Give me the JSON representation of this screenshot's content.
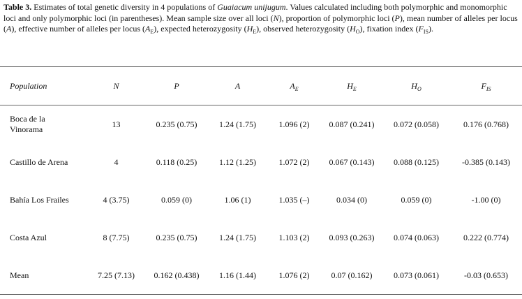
{
  "caption": [
    {
      "text": "Table 3.",
      "style": "bold"
    },
    {
      "text": " Estimates of total genetic diversity in 4 populations of ",
      "style": "plain"
    },
    {
      "text": "Guaiacum unijugum",
      "style": "italic"
    },
    {
      "text": ". Values calculated including both polymorphic and monomorphic loci and only polymorphic loci (in parentheses). Mean sample size over all loci (",
      "style": "plain"
    },
    {
      "text": "N",
      "style": "italic"
    },
    {
      "text": "), proportion of polymorphic loci (",
      "style": "plain"
    },
    {
      "text": "P",
      "style": "italic"
    },
    {
      "text": "), mean number of alleles per locus (",
      "style": "plain"
    },
    {
      "text": "A",
      "style": "italic"
    },
    {
      "text": "), effective number of alleles per locus (",
      "style": "plain"
    },
    {
      "text": "A",
      "style": "italic"
    },
    {
      "text": "E",
      "style": "sub"
    },
    {
      "text": "), expected heterozygosity (",
      "style": "plain"
    },
    {
      "text": "H",
      "style": "italic"
    },
    {
      "text": "E",
      "style": "sub"
    },
    {
      "text": "), observed heterozygosity (",
      "style": "plain"
    },
    {
      "text": "H",
      "style": "italic"
    },
    {
      "text": "O",
      "style": "sub"
    },
    {
      "text": "), fixation index (",
      "style": "plain"
    },
    {
      "text": "F",
      "style": "italic"
    },
    {
      "text": "IS",
      "style": "sub"
    },
    {
      "text": ").",
      "style": "plain"
    }
  ],
  "table": {
    "header": [
      {
        "text": "Population"
      },
      {
        "text": "N"
      },
      {
        "text": "P"
      },
      {
        "text": "A"
      },
      {
        "text": "A",
        "sub": "E"
      },
      {
        "text": "H",
        "sub": "E"
      },
      {
        "text": "H",
        "sub": "O"
      },
      {
        "text": "F",
        "sub": "IS"
      }
    ],
    "rows": [
      [
        "Boca de la Vinorama",
        "13",
        "0.235 (0.75)",
        "1.24 (1.75)",
        "1.096 (2)",
        "0.087 (0.241)",
        "0.072 (0.058)",
        "0.176 (0.768)"
      ],
      [
        "Castillo de Arena",
        "4",
        "0.118 (0.25)",
        "1.12 (1.25)",
        "1.072 (2)",
        "0.067 (0.143)",
        "0.088 (0.125)",
        "-0.385 (0.143)"
      ],
      [
        "Bahía Los Frailes",
        "4 (3.75)",
        "0.059 (0)",
        "1.06 (1)",
        "1.035 (–)",
        "0.034 (0)",
        "0.059 (0)",
        "-1.00 (0)"
      ],
      [
        "Costa Azul",
        "8 (7.75)",
        "0.235 (0.75)",
        "1.24 (1.75)",
        "1.103 (2)",
        "0.093 (0.263)",
        "0.074 (0.063)",
        "0.222 (0.774)"
      ],
      [
        "Mean",
        "7.25 (7.13)",
        "0.162 (0.438)",
        "1.16 (1.44)",
        "1.076 (2)",
        "0.07 (0.162)",
        "0.073 (0.061)",
        "-0.03 (0.653)"
      ]
    ]
  }
}
